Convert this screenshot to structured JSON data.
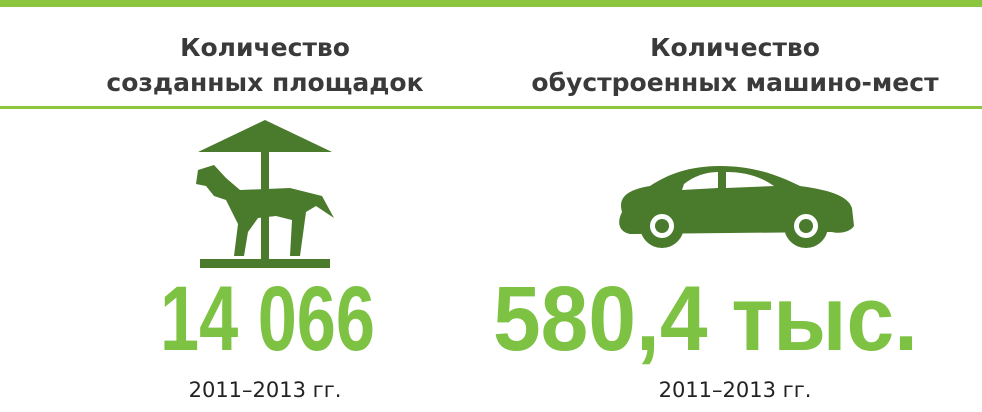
{
  "columns": [
    {
      "title": [
        "Количество",
        "созданных площадок"
      ],
      "value": "14 066",
      "period": "2011–2013 гг."
    },
    {
      "title": [
        "Количество",
        "обустроенных машино-мест"
      ],
      "value": "580,4 тыс.",
      "period": "2011–2013 гг."
    }
  ]
}
